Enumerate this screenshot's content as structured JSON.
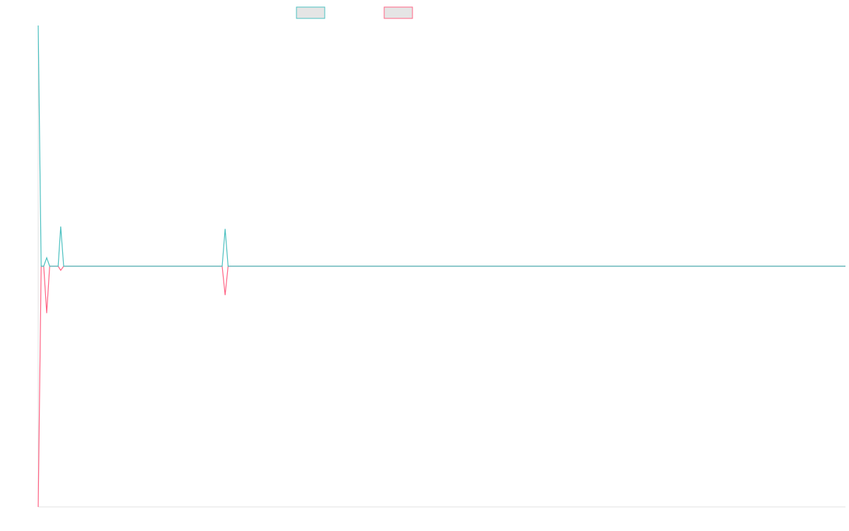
{
  "chart_data": {
    "type": "line",
    "title": "",
    "xlabel": "",
    "ylabel": "",
    "grid": false,
    "legend_placement": "top-center",
    "x_range": [
      0,
      190
    ],
    "ylim": [
      -100,
      100
    ],
    "series": [
      {
        "name": "",
        "color": "#4bc0c0",
        "fill": "#e5e5e5",
        "points": [
          [
            0,
            100
          ],
          [
            0.7,
            0
          ],
          [
            1.3,
            0
          ],
          [
            2,
            3.5
          ],
          [
            2.7,
            0
          ],
          [
            4.7,
            0
          ],
          [
            5.3,
            16.5
          ],
          [
            6,
            0
          ],
          [
            8,
            0
          ],
          [
            43.3,
            0
          ],
          [
            44,
            15.5
          ],
          [
            44.7,
            0
          ],
          [
            190,
            0
          ]
        ]
      },
      {
        "name": "",
        "color": "#ff6384",
        "fill": "#e5e5e5",
        "points": [
          [
            0,
            -100
          ],
          [
            0.7,
            0
          ],
          [
            1.3,
            0
          ],
          [
            2,
            -19.5
          ],
          [
            2.7,
            0
          ],
          [
            4.7,
            0
          ],
          [
            5.3,
            -1.7
          ],
          [
            6,
            0
          ],
          [
            8,
            0
          ],
          [
            43.3,
            0
          ],
          [
            44,
            -12
          ],
          [
            44.7,
            0
          ],
          [
            190,
            0
          ]
        ]
      }
    ]
  }
}
